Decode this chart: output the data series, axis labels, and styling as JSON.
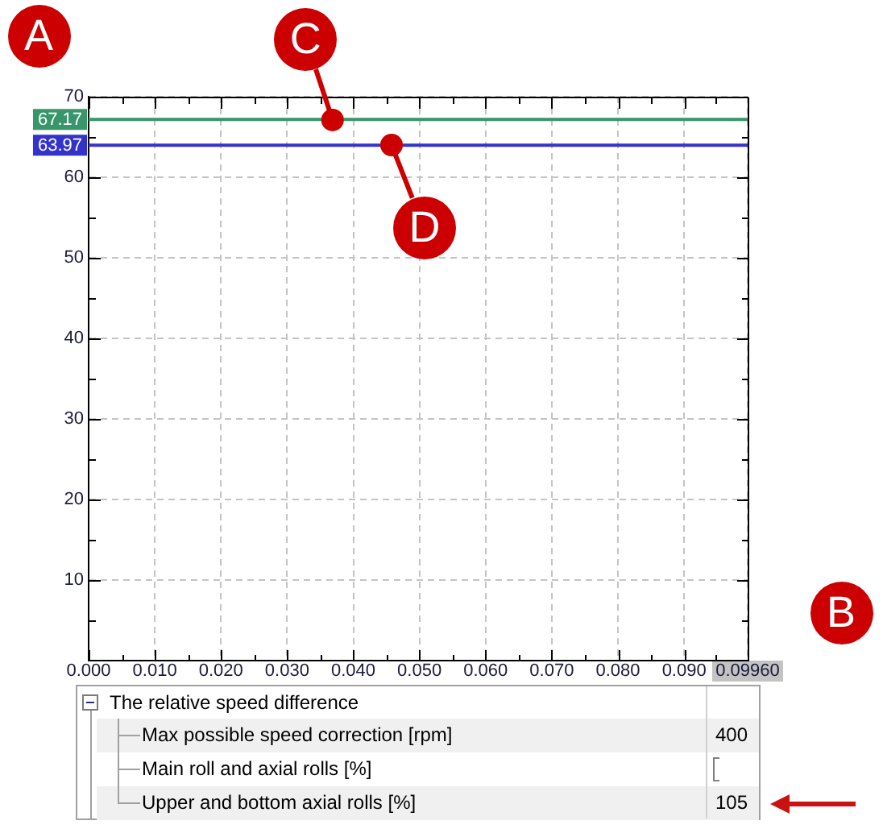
{
  "chart_data": {
    "type": "line",
    "x": [
      0,
      0.0996
    ],
    "series": [
      {
        "color": "#38966a",
        "values": [
          67.17,
          67.17
        ],
        "value_labels": [
          "67.17",
          null
        ]
      },
      {
        "color": "#3333cc",
        "values": [
          63.97,
          63.97
        ],
        "value_labels": [
          "63.97",
          null
        ]
      }
    ],
    "xlim": [
      0,
      0.0996
    ],
    "xticks": [
      {
        "value": 0,
        "label": "0.000"
      },
      {
        "value": 0.01,
        "label": "0.010"
      },
      {
        "value": 0.02,
        "label": "0.020"
      },
      {
        "value": 0.03,
        "label": "0.030"
      },
      {
        "value": 0.04,
        "label": "0.040"
      },
      {
        "value": 0.05,
        "label": "0.050"
      },
      {
        "value": 0.06,
        "label": "0.060"
      },
      {
        "value": 0.07,
        "label": "0.070"
      },
      {
        "value": 0.08,
        "label": "0.080"
      },
      {
        "value": 0.09,
        "label": "0.090"
      },
      {
        "value": 0.0996,
        "label": "0.09960"
      }
    ],
    "ylim": [
      0,
      70
    ],
    "yticks": [
      10,
      20,
      30,
      40,
      50,
      60,
      70
    ],
    "grid": true,
    "marker": "none",
    "line_style": "solid",
    "annotations": [
      "A",
      "B",
      {
        "text": "C",
        "x": 0.0368,
        "y": 67.17
      },
      {
        "text": "D",
        "x": 0.0459,
        "y": 63.97
      },
      "The relative speed difference",
      "Max possible speed correction [rpm]",
      "400",
      "Main roll and axial rolls [%]",
      "Upper and bottom axial rolls [%]",
      "105"
    ]
  }
}
